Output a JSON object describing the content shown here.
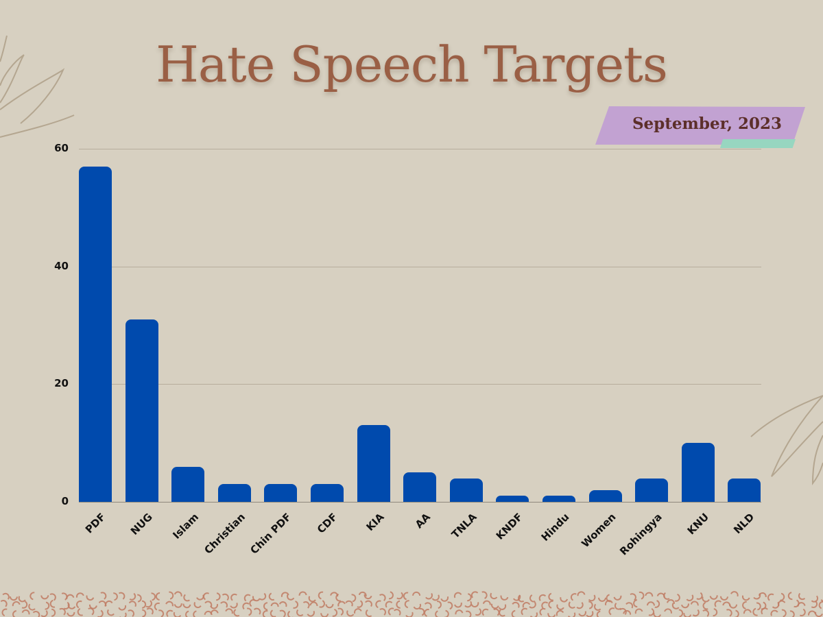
{
  "title": "Hate Speech Targets",
  "badge": {
    "label": "September, 2023"
  },
  "colors": {
    "background": "#d7d0c1",
    "title": "#9a5f45",
    "bar": "#004aad",
    "badge": "#c2a2d2",
    "badge_accent": "#97d6c0",
    "badge_text": "#5c2f2a",
    "decor": "#b4a690",
    "pattern": "#c07b63"
  },
  "chart_data": {
    "type": "bar",
    "title": "Hate Speech Targets",
    "subtitle": "September, 2023",
    "xlabel": "",
    "ylabel": "",
    "categories": [
      "PDF",
      "NUG",
      "Islam",
      "Christian",
      "Chin PDF",
      "CDF",
      "KIA",
      "AA",
      "TNLA",
      "KNDF",
      "Hindu",
      "Women",
      "Rohingya",
      "KNU",
      "NLD"
    ],
    "values": [
      57,
      31,
      6,
      3,
      3,
      3,
      13,
      5,
      4,
      1,
      1,
      2,
      4,
      10,
      4
    ],
    "ylim": [
      0,
      60
    ],
    "yticks": [
      "0",
      "20",
      "40",
      "60"
    ],
    "grid": true,
    "legend": null
  }
}
